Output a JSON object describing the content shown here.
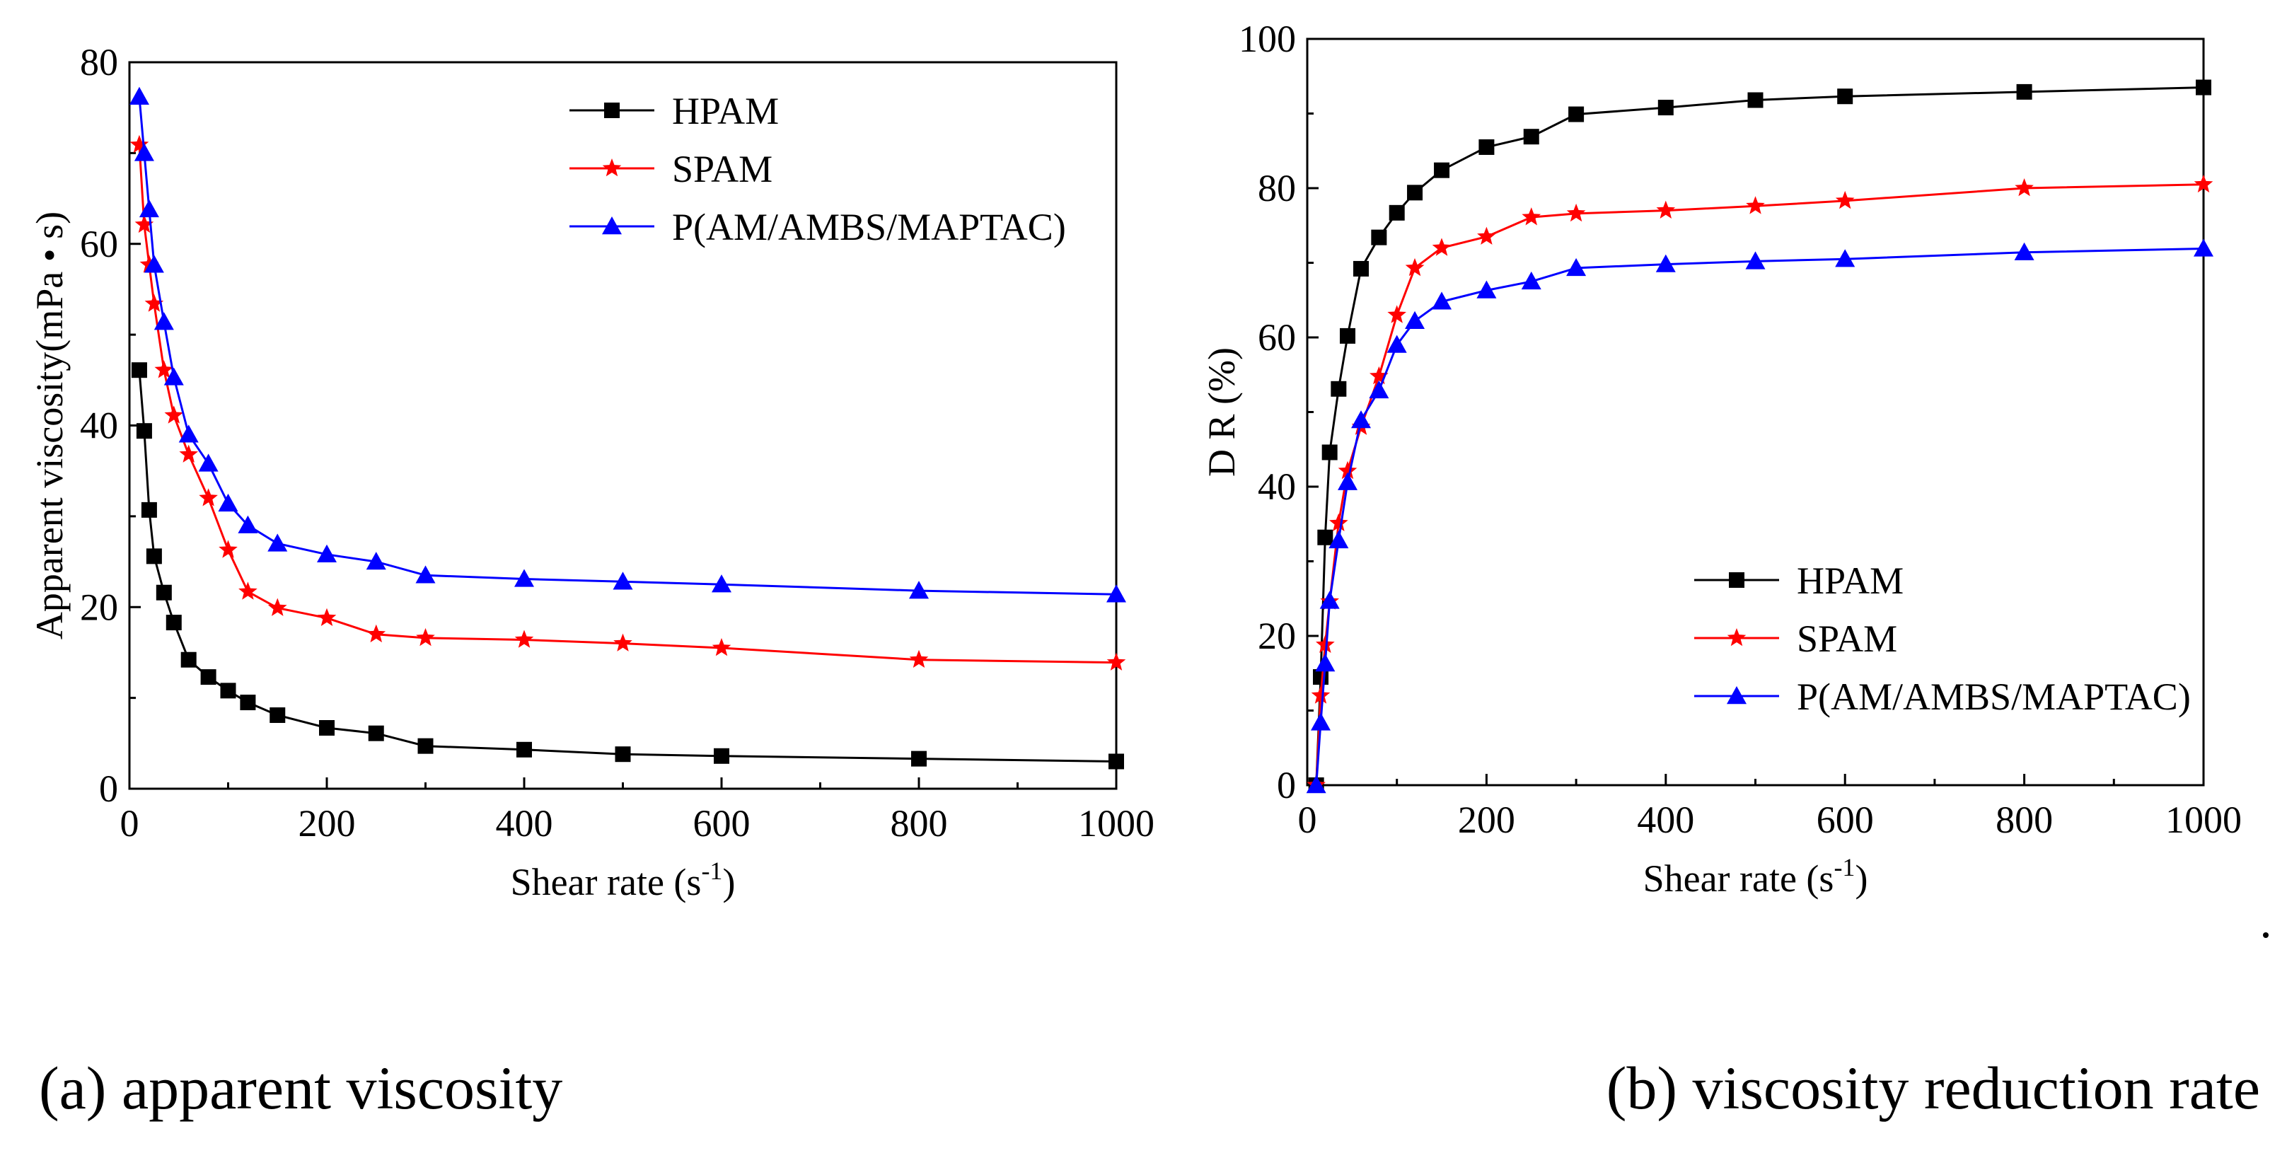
{
  "captions": {
    "a": "(a) apparent viscosity",
    "b": "(b) viscosity reduction rate"
  },
  "colors": {
    "HPAM": "#000000",
    "SPAM": "#ff0000",
    "P(AM/AMBS/MAPTAC)": "#0000ff"
  },
  "chart_data": [
    {
      "id": "a",
      "type": "line",
      "title": "",
      "xlabel": "Shear rate (s-1)",
      "ylabel": "Apparent  viscosity(mPa • s)",
      "xlim": [
        0,
        1000
      ],
      "ylim": [
        0,
        80
      ],
      "xticks": [
        0,
        200,
        400,
        600,
        800,
        1000
      ],
      "yticks": [
        0,
        20,
        40,
        60,
        80
      ],
      "legend": "top-right",
      "grid": false,
      "series": [
        {
          "name": "HPAM",
          "marker": "square",
          "color": "#000000",
          "x": [
            10,
            15,
            20,
            25,
            35,
            45,
            60,
            80,
            100,
            120,
            150,
            200,
            250,
            300,
            400,
            500,
            600,
            800,
            1000
          ],
          "y": [
            46.1,
            39.4,
            30.7,
            25.6,
            21.6,
            18.3,
            14.2,
            12.3,
            10.8,
            9.5,
            8.1,
            6.7,
            6.1,
            4.7,
            4.3,
            3.8,
            3.6,
            3.3,
            3.0
          ]
        },
        {
          "name": "SPAM",
          "marker": "star",
          "color": "#ff0000",
          "x": [
            10,
            15,
            20,
            25,
            35,
            45,
            60,
            80,
            100,
            120,
            150,
            200,
            250,
            300,
            400,
            500,
            600,
            800,
            1000
          ],
          "y": [
            70.9,
            62.1,
            57.7,
            53.4,
            46.1,
            41.1,
            36.8,
            32.0,
            26.3,
            21.7,
            19.9,
            18.8,
            17.0,
            16.6,
            16.4,
            16.0,
            15.5,
            14.2,
            13.9
          ]
        },
        {
          "name": "P(AM/AMBS/MAPTAC)",
          "marker": "triangle",
          "color": "#0000ff",
          "x": [
            10,
            15,
            20,
            25,
            35,
            45,
            60,
            80,
            100,
            120,
            150,
            200,
            250,
            300,
            400,
            500,
            600,
            800,
            1000
          ],
          "y": [
            76.2,
            70.0,
            63.8,
            57.7,
            51.4,
            45.3,
            39.0,
            35.8,
            31.4,
            29.0,
            27.0,
            25.8,
            25.0,
            23.5,
            23.1,
            22.8,
            22.5,
            21.8,
            21.4
          ]
        }
      ]
    },
    {
      "id": "b",
      "type": "line",
      "title": "",
      "xlabel": "Shear rate (s-1)",
      "ylabel": "D R (%)",
      "xlim": [
        0,
        1000
      ],
      "ylim": [
        0,
        100
      ],
      "xticks": [
        0,
        200,
        400,
        600,
        800,
        1000
      ],
      "yticks": [
        0,
        20,
        40,
        60,
        80,
        100
      ],
      "legend": "bottom-right",
      "grid": false,
      "series": [
        {
          "name": "HPAM",
          "marker": "square",
          "color": "#000000",
          "x": [
            10,
            15,
            20,
            25,
            35,
            45,
            60,
            80,
            100,
            120,
            150,
            200,
            250,
            300,
            400,
            500,
            600,
            800,
            1000
          ],
          "y": [
            0,
            14.5,
            33.2,
            44.6,
            53.1,
            60.2,
            69.2,
            73.4,
            76.7,
            79.4,
            82.4,
            85.5,
            86.9,
            89.9,
            90.8,
            91.8,
            92.3,
            92.9,
            93.5
          ]
        },
        {
          "name": "SPAM",
          "marker": "star",
          "color": "#ff0000",
          "x": [
            10,
            15,
            20,
            25,
            35,
            45,
            60,
            80,
            100,
            120,
            150,
            200,
            250,
            300,
            400,
            500,
            600,
            800,
            1000
          ],
          "y": [
            0,
            12.0,
            18.8,
            24.6,
            35.1,
            42.1,
            48.0,
            54.8,
            63.0,
            69.3,
            72.0,
            73.5,
            76.1,
            76.6,
            77.0,
            77.6,
            78.3,
            80.0,
            80.5
          ]
        },
        {
          "name": "P(AM/AMBS/MAPTAC)",
          "marker": "triangle",
          "color": "#0000ff",
          "x": [
            10,
            15,
            20,
            25,
            35,
            45,
            60,
            80,
            100,
            120,
            150,
            200,
            250,
            300,
            400,
            500,
            600,
            800,
            1000
          ],
          "y": [
            0,
            8.4,
            16.3,
            24.7,
            32.8,
            40.6,
            48.9,
            52.9,
            59.0,
            62.2,
            64.8,
            66.3,
            67.5,
            69.3,
            69.8,
            70.2,
            70.5,
            71.4,
            71.9
          ]
        }
      ]
    }
  ]
}
